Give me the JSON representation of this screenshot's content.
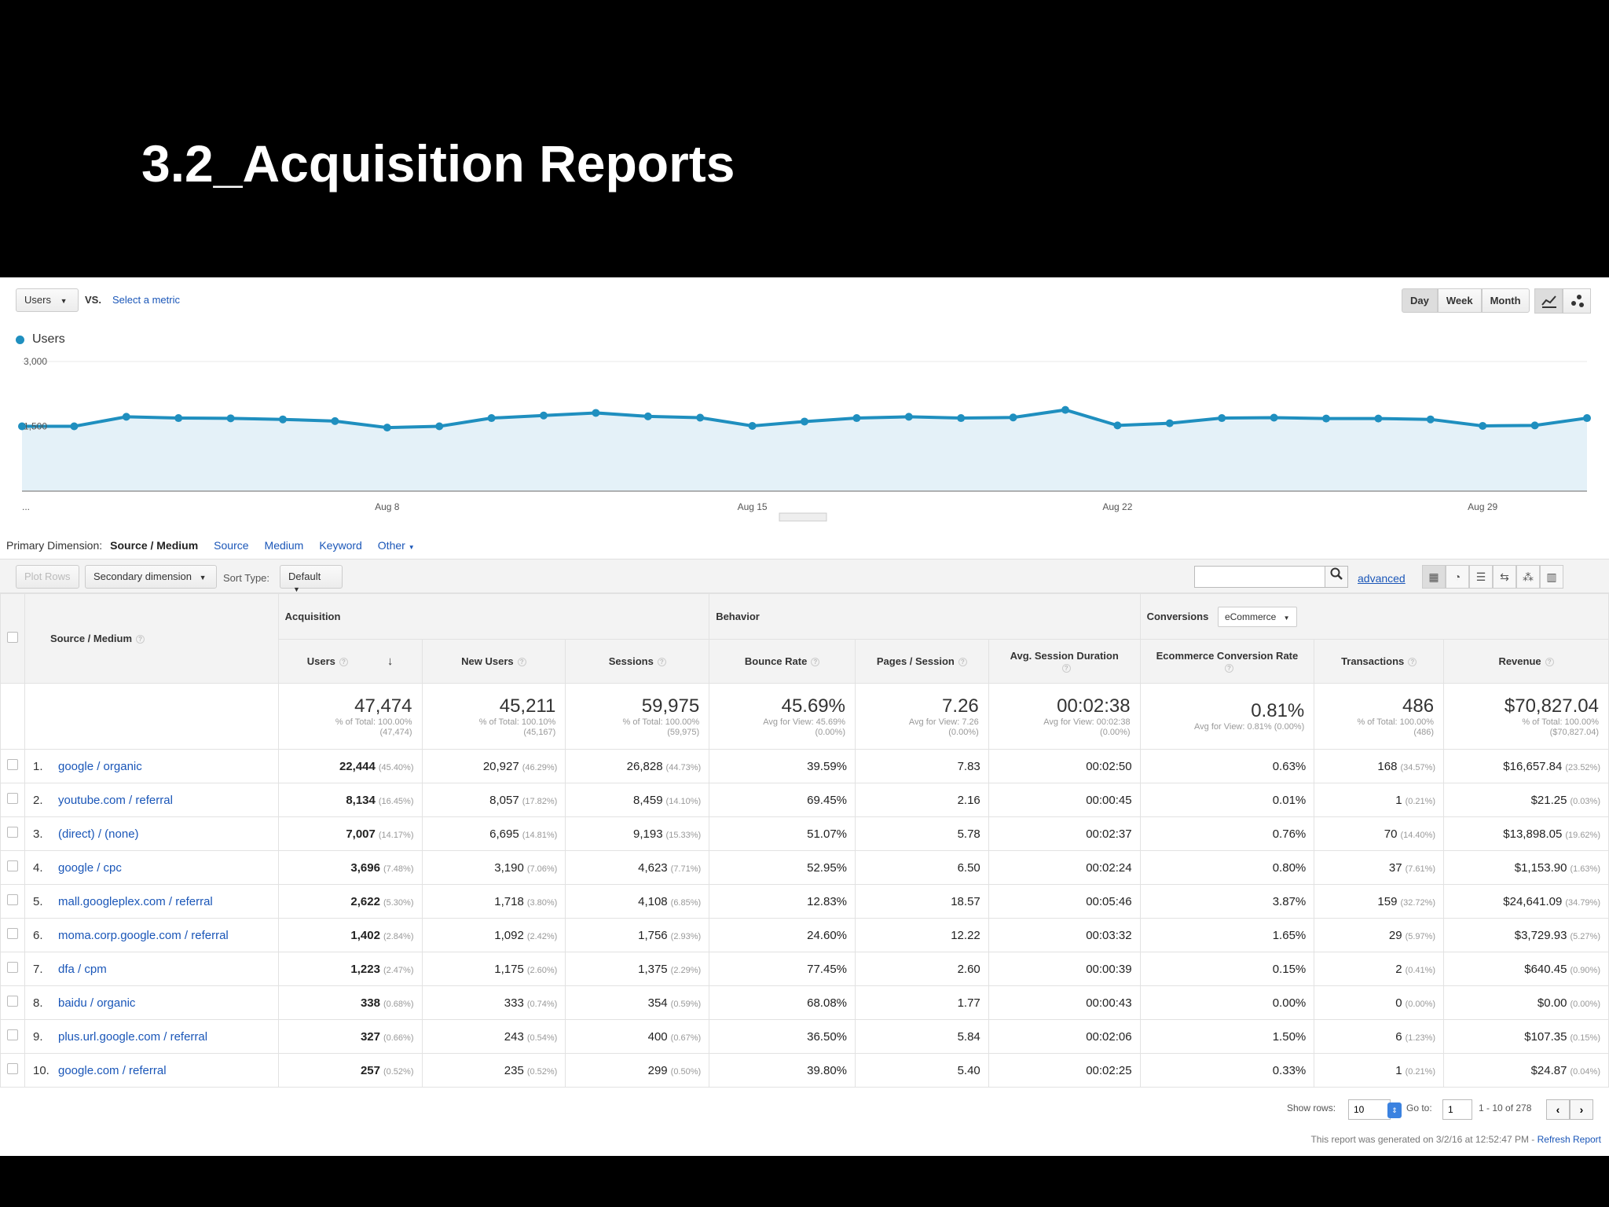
{
  "slide_title": "3.2_Acquisition Reports",
  "toolbar": {
    "metric_label": "Users",
    "vs_label": "VS.",
    "select_metric": "Select a metric",
    "periods": [
      "Day",
      "Week",
      "Month"
    ],
    "active_period": "Day"
  },
  "chart_data": {
    "type": "area",
    "series": [
      {
        "name": "Users",
        "color": "#1f8fbf",
        "values": [
          1500,
          1500,
          1720,
          1690,
          1685,
          1660,
          1620,
          1470,
          1500,
          1690,
          1750,
          1810,
          1730,
          1700,
          1510,
          1610,
          1690,
          1720,
          1690,
          1705,
          1880,
          1520,
          1570,
          1690,
          1700,
          1680,
          1680,
          1660,
          1510,
          1520,
          1690
        ]
      }
    ],
    "ytick_labels": [
      "3,000",
      "1,500"
    ],
    "xtick_labels": [
      "...",
      "Aug 8",
      "Aug 15",
      "Aug 22",
      "Aug 29"
    ],
    "ylim": [
      0,
      3000
    ],
    "grid": true,
    "legend": "top-left"
  },
  "dimension": {
    "label": "Primary Dimension:",
    "active": "Source / Medium",
    "options": [
      "Source",
      "Medium",
      "Keyword",
      "Other"
    ]
  },
  "table_toolbar": {
    "plot_rows": "Plot Rows",
    "secondary": "Secondary dimension",
    "sort_label": "Sort Type:",
    "sort_value": "Default",
    "advanced": "advanced"
  },
  "table": {
    "dim_header": "Source / Medium",
    "groups": {
      "acquisition": "Acquisition",
      "behavior": "Behavior",
      "conversions": "Conversions",
      "conversions_select": "eCommerce"
    },
    "columns": [
      "Users",
      "New Users",
      "Sessions",
      "Bounce Rate",
      "Pages / Session",
      "Avg. Session Duration",
      "Ecommerce Conversion Rate",
      "Transactions",
      "Revenue"
    ],
    "totals": [
      {
        "main": "47,474",
        "sub1": "% of Total: 100.00%",
        "sub2": "(47,474)"
      },
      {
        "main": "45,211",
        "sub1": "% of Total: 100.10%",
        "sub2": "(45,167)"
      },
      {
        "main": "59,975",
        "sub1": "% of Total: 100.00%",
        "sub2": "(59,975)"
      },
      {
        "main": "45.69%",
        "sub1": "Avg for View: 45.69%",
        "sub2": "(0.00%)"
      },
      {
        "main": "7.26",
        "sub1": "Avg for View: 7.26",
        "sub2": "(0.00%)"
      },
      {
        "main": "00:02:38",
        "sub1": "Avg for View: 00:02:38",
        "sub2": "(0.00%)"
      },
      {
        "main": "0.81%",
        "sub1": "Avg for View: 0.81% (0.00%)",
        "sub2": ""
      },
      {
        "main": "486",
        "sub1": "% of Total: 100.00%",
        "sub2": "(486)"
      },
      {
        "main": "$70,827.04",
        "sub1": "% of Total: 100.00%",
        "sub2": "($70,827.04)"
      }
    ],
    "rows": [
      {
        "idx": "1.",
        "source": "google / organic",
        "users": "22,444",
        "users_pct": "(45.40%)",
        "new_users": "20,927",
        "new_users_pct": "(46.29%)",
        "sessions": "26,828",
        "sessions_pct": "(44.73%)",
        "bounce": "39.59%",
        "pages": "7.83",
        "duration": "00:02:50",
        "conv": "0.63%",
        "trans": "168",
        "trans_pct": "(34.57%)",
        "revenue": "$16,657.84",
        "revenue_pct": "(23.52%)"
      },
      {
        "idx": "2.",
        "source": "youtube.com / referral",
        "users": "8,134",
        "users_pct": "(16.45%)",
        "new_users": "8,057",
        "new_users_pct": "(17.82%)",
        "sessions": "8,459",
        "sessions_pct": "(14.10%)",
        "bounce": "69.45%",
        "pages": "2.16",
        "duration": "00:00:45",
        "conv": "0.01%",
        "trans": "1",
        "trans_pct": "(0.21%)",
        "revenue": "$21.25",
        "revenue_pct": "(0.03%)"
      },
      {
        "idx": "3.",
        "source": "(direct) / (none)",
        "users": "7,007",
        "users_pct": "(14.17%)",
        "new_users": "6,695",
        "new_users_pct": "(14.81%)",
        "sessions": "9,193",
        "sessions_pct": "(15.33%)",
        "bounce": "51.07%",
        "pages": "5.78",
        "duration": "00:02:37",
        "conv": "0.76%",
        "trans": "70",
        "trans_pct": "(14.40%)",
        "revenue": "$13,898.05",
        "revenue_pct": "(19.62%)"
      },
      {
        "idx": "4.",
        "source": "google / cpc",
        "users": "3,696",
        "users_pct": "(7.48%)",
        "new_users": "3,190",
        "new_users_pct": "(7.06%)",
        "sessions": "4,623",
        "sessions_pct": "(7.71%)",
        "bounce": "52.95%",
        "pages": "6.50",
        "duration": "00:02:24",
        "conv": "0.80%",
        "trans": "37",
        "trans_pct": "(7.61%)",
        "revenue": "$1,153.90",
        "revenue_pct": "(1.63%)"
      },
      {
        "idx": "5.",
        "source": "mall.googleplex.com / referral",
        "users": "2,622",
        "users_pct": "(5.30%)",
        "new_users": "1,718",
        "new_users_pct": "(3.80%)",
        "sessions": "4,108",
        "sessions_pct": "(6.85%)",
        "bounce": "12.83%",
        "pages": "18.57",
        "duration": "00:05:46",
        "conv": "3.87%",
        "trans": "159",
        "trans_pct": "(32.72%)",
        "revenue": "$24,641.09",
        "revenue_pct": "(34.79%)"
      },
      {
        "idx": "6.",
        "source": "moma.corp.google.com / referral",
        "users": "1,402",
        "users_pct": "(2.84%)",
        "new_users": "1,092",
        "new_users_pct": "(2.42%)",
        "sessions": "1,756",
        "sessions_pct": "(2.93%)",
        "bounce": "24.60%",
        "pages": "12.22",
        "duration": "00:03:32",
        "conv": "1.65%",
        "trans": "29",
        "trans_pct": "(5.97%)",
        "revenue": "$3,729.93",
        "revenue_pct": "(5.27%)"
      },
      {
        "idx": "7.",
        "source": "dfa / cpm",
        "users": "1,223",
        "users_pct": "(2.47%)",
        "new_users": "1,175",
        "new_users_pct": "(2.60%)",
        "sessions": "1,375",
        "sessions_pct": "(2.29%)",
        "bounce": "77.45%",
        "pages": "2.60",
        "duration": "00:00:39",
        "conv": "0.15%",
        "trans": "2",
        "trans_pct": "(0.41%)",
        "revenue": "$640.45",
        "revenue_pct": "(0.90%)"
      },
      {
        "idx": "8.",
        "source": "baidu / organic",
        "users": "338",
        "users_pct": "(0.68%)",
        "new_users": "333",
        "new_users_pct": "(0.74%)",
        "sessions": "354",
        "sessions_pct": "(0.59%)",
        "bounce": "68.08%",
        "pages": "1.77",
        "duration": "00:00:43",
        "conv": "0.00%",
        "trans": "0",
        "trans_pct": "(0.00%)",
        "revenue": "$0.00",
        "revenue_pct": "(0.00%)"
      },
      {
        "idx": "9.",
        "source": "plus.url.google.com / referral",
        "users": "327",
        "users_pct": "(0.66%)",
        "new_users": "243",
        "new_users_pct": "(0.54%)",
        "sessions": "400",
        "sessions_pct": "(0.67%)",
        "bounce": "36.50%",
        "pages": "5.84",
        "duration": "00:02:06",
        "conv": "1.50%",
        "trans": "6",
        "trans_pct": "(1.23%)",
        "revenue": "$107.35",
        "revenue_pct": "(0.15%)"
      },
      {
        "idx": "10.",
        "source": "google.com / referral",
        "users": "257",
        "users_pct": "(0.52%)",
        "new_users": "235",
        "new_users_pct": "(0.52%)",
        "sessions": "299",
        "sessions_pct": "(0.50%)",
        "bounce": "39.80%",
        "pages": "5.40",
        "duration": "00:02:25",
        "conv": "0.33%",
        "trans": "1",
        "trans_pct": "(0.21%)",
        "revenue": "$24.87",
        "revenue_pct": "(0.04%)"
      }
    ]
  },
  "footer": {
    "show_rows_label": "Show rows:",
    "show_rows_value": "10",
    "goto_label": "Go to:",
    "goto_value": "1",
    "range": "1 - 10 of 278",
    "generated_text": "This report was generated on 3/2/16 at 12:52:47 PM - ",
    "refresh": "Refresh Report"
  }
}
